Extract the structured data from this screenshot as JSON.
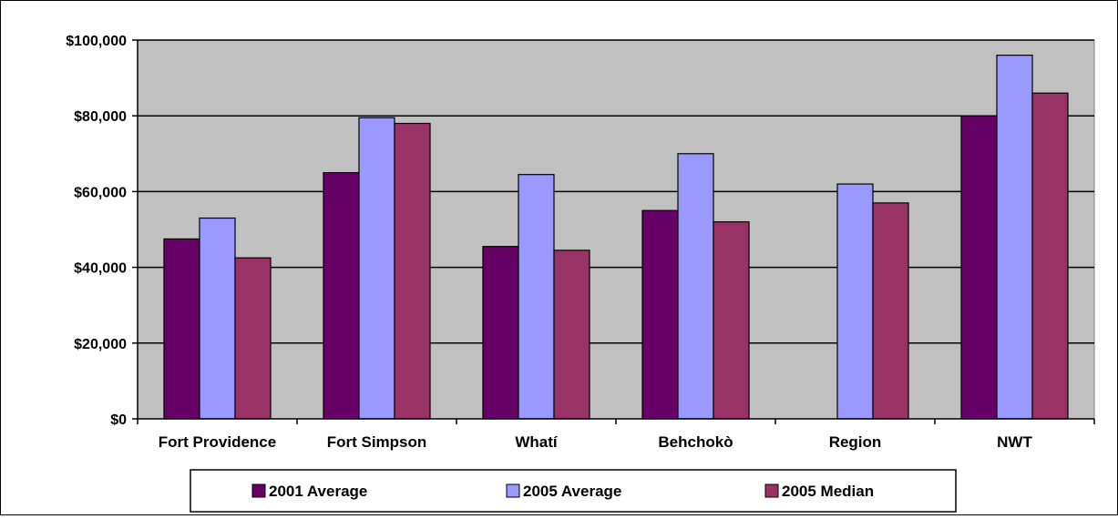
{
  "chart_data": {
    "type": "bar",
    "categories": [
      "Fort Providence",
      "Fort Simpson",
      "Whatí",
      "Behchokò",
      "Region",
      "NWT"
    ],
    "series": [
      {
        "name": "2001 Average",
        "color": "#660066",
        "values": [
          47500,
          65000,
          45500,
          55000,
          null,
          80000
        ]
      },
      {
        "name": "2005 Average",
        "color": "#9999FF",
        "values": [
          53000,
          79500,
          64500,
          70000,
          62000,
          96000
        ]
      },
      {
        "name": "2005 Median",
        "color": "#993366",
        "values": [
          42500,
          78000,
          44500,
          52000,
          57000,
          86000
        ]
      }
    ],
    "y_ticks": [
      "$0",
      "$20,000",
      "$40,000",
      "$60,000",
      "$80,000",
      "$100,000"
    ],
    "ylim": [
      0,
      100000
    ],
    "grid": true,
    "plot_background": "#C0C0C0",
    "legend_position": "bottom"
  }
}
